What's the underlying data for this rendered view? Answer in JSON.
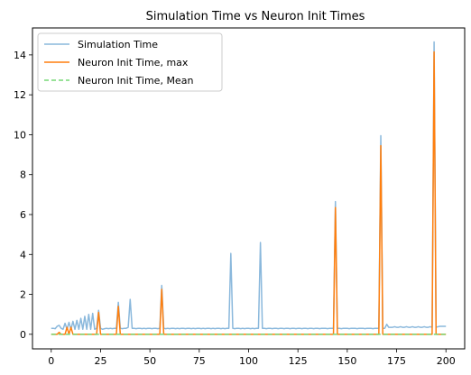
{
  "chart_data": {
    "type": "line",
    "title": "Simulation Time vs Neuron Init Times",
    "xlabel": "",
    "ylabel": "",
    "xlim": [
      -9.5,
      209.5
    ],
    "ylim": [
      -0.73,
      15.35
    ],
    "xticks": [
      0,
      25,
      50,
      75,
      100,
      125,
      150,
      175,
      200
    ],
    "yticks": [
      0,
      2,
      4,
      6,
      8,
      10,
      12,
      14
    ],
    "legend_position": "top-left",
    "grid": false,
    "series": [
      {
        "name": "Simulation Time",
        "color": "#8ab8dc",
        "style": "solid",
        "points": [
          [
            0,
            0.3
          ],
          [
            1,
            0.3
          ],
          [
            2,
            0.28
          ],
          [
            3,
            0.4
          ],
          [
            4,
            0.45
          ],
          [
            5,
            0.3
          ],
          [
            6,
            0.25
          ],
          [
            7,
            0.55
          ],
          [
            8,
            0.25
          ],
          [
            9,
            0.6
          ],
          [
            10,
            0.25
          ],
          [
            11,
            0.65
          ],
          [
            12,
            0.25
          ],
          [
            13,
            0.7
          ],
          [
            14,
            0.25
          ],
          [
            15,
            0.8
          ],
          [
            16,
            0.25
          ],
          [
            17,
            0.9
          ],
          [
            18,
            0.25
          ],
          [
            19,
            1.0
          ],
          [
            20,
            0.25
          ],
          [
            21,
            1.05
          ],
          [
            22,
            0.25
          ],
          [
            23,
            0.3
          ],
          [
            24,
            1.2
          ],
          [
            25,
            0.3
          ],
          [
            26,
            0.25
          ],
          [
            27,
            0.28
          ],
          [
            28,
            0.3
          ],
          [
            29,
            0.28
          ],
          [
            30,
            0.3
          ],
          [
            31,
            0.28
          ],
          [
            32,
            0.3
          ],
          [
            33,
            0.3
          ],
          [
            34,
            1.6
          ],
          [
            35,
            0.3
          ],
          [
            36,
            0.28
          ],
          [
            37,
            0.3
          ],
          [
            38,
            0.3
          ],
          [
            39,
            0.35
          ],
          [
            40,
            1.75
          ],
          [
            41,
            0.3
          ],
          [
            42,
            0.3
          ],
          [
            43,
            0.28
          ],
          [
            44,
            0.3
          ],
          [
            45,
            0.3
          ],
          [
            46,
            0.28
          ],
          [
            47,
            0.3
          ],
          [
            48,
            0.28
          ],
          [
            49,
            0.3
          ],
          [
            50,
            0.3
          ],
          [
            51,
            0.28
          ],
          [
            52,
            0.3
          ],
          [
            53,
            0.3
          ],
          [
            54,
            0.28
          ],
          [
            55,
            0.3
          ],
          [
            56,
            2.45
          ],
          [
            57,
            0.3
          ],
          [
            58,
            0.28
          ],
          [
            59,
            0.3
          ],
          [
            60,
            0.28
          ],
          [
            61,
            0.3
          ],
          [
            62,
            0.3
          ],
          [
            63,
            0.28
          ],
          [
            64,
            0.3
          ],
          [
            65,
            0.28
          ],
          [
            66,
            0.3
          ],
          [
            67,
            0.3
          ],
          [
            68,
            0.28
          ],
          [
            69,
            0.3
          ],
          [
            70,
            0.3
          ],
          [
            71,
            0.28
          ],
          [
            72,
            0.3
          ],
          [
            73,
            0.28
          ],
          [
            74,
            0.3
          ],
          [
            75,
            0.3
          ],
          [
            76,
            0.28
          ],
          [
            77,
            0.3
          ],
          [
            78,
            0.28
          ],
          [
            79,
            0.3
          ],
          [
            80,
            0.3
          ],
          [
            81,
            0.28
          ],
          [
            82,
            0.3
          ],
          [
            83,
            0.28
          ],
          [
            84,
            0.3
          ],
          [
            85,
            0.3
          ],
          [
            86,
            0.28
          ],
          [
            87,
            0.3
          ],
          [
            88,
            0.28
          ],
          [
            89,
            0.3
          ],
          [
            90,
            0.3
          ],
          [
            91,
            4.05
          ],
          [
            92,
            0.3
          ],
          [
            93,
            0.28
          ],
          [
            94,
            0.3
          ],
          [
            95,
            0.3
          ],
          [
            96,
            0.28
          ],
          [
            97,
            0.3
          ],
          [
            98,
            0.28
          ],
          [
            99,
            0.3
          ],
          [
            100,
            0.3
          ],
          [
            101,
            0.28
          ],
          [
            102,
            0.3
          ],
          [
            103,
            0.28
          ],
          [
            104,
            0.3
          ],
          [
            105,
            0.3
          ],
          [
            106,
            4.6
          ],
          [
            107,
            0.3
          ],
          [
            108,
            0.3
          ],
          [
            109,
            0.28
          ],
          [
            110,
            0.3
          ],
          [
            111,
            0.3
          ],
          [
            112,
            0.28
          ],
          [
            113,
            0.3
          ],
          [
            114,
            0.3
          ],
          [
            115,
            0.28
          ],
          [
            116,
            0.3
          ],
          [
            117,
            0.3
          ],
          [
            118,
            0.28
          ],
          [
            119,
            0.3
          ],
          [
            120,
            0.3
          ],
          [
            121,
            0.28
          ],
          [
            122,
            0.3
          ],
          [
            123,
            0.3
          ],
          [
            124,
            0.28
          ],
          [
            125,
            0.3
          ],
          [
            126,
            0.3
          ],
          [
            127,
            0.28
          ],
          [
            128,
            0.3
          ],
          [
            129,
            0.3
          ],
          [
            130,
            0.28
          ],
          [
            131,
            0.3
          ],
          [
            132,
            0.3
          ],
          [
            133,
            0.28
          ],
          [
            134,
            0.3
          ],
          [
            135,
            0.3
          ],
          [
            136,
            0.28
          ],
          [
            137,
            0.3
          ],
          [
            138,
            0.3
          ],
          [
            139,
            0.3
          ],
          [
            140,
            0.28
          ],
          [
            141,
            0.3
          ],
          [
            142,
            0.3
          ],
          [
            143,
            0.3
          ],
          [
            144,
            6.65
          ],
          [
            145,
            0.3
          ],
          [
            146,
            0.3
          ],
          [
            147,
            0.28
          ],
          [
            148,
            0.3
          ],
          [
            149,
            0.3
          ],
          [
            150,
            0.3
          ],
          [
            151,
            0.28
          ],
          [
            152,
            0.3
          ],
          [
            153,
            0.3
          ],
          [
            154,
            0.3
          ],
          [
            155,
            0.28
          ],
          [
            156,
            0.3
          ],
          [
            157,
            0.3
          ],
          [
            158,
            0.3
          ],
          [
            159,
            0.28
          ],
          [
            160,
            0.3
          ],
          [
            161,
            0.3
          ],
          [
            162,
            0.3
          ],
          [
            163,
            0.28
          ],
          [
            164,
            0.3
          ],
          [
            165,
            0.3
          ],
          [
            166,
            0.3
          ],
          [
            167,
            9.95
          ],
          [
            168,
            0.3
          ],
          [
            169,
            0.3
          ],
          [
            170,
            0.5
          ],
          [
            171,
            0.35
          ],
          [
            172,
            0.35
          ],
          [
            173,
            0.35
          ],
          [
            174,
            0.38
          ],
          [
            175,
            0.35
          ],
          [
            176,
            0.35
          ],
          [
            177,
            0.38
          ],
          [
            178,
            0.35
          ],
          [
            179,
            0.35
          ],
          [
            180,
            0.38
          ],
          [
            181,
            0.35
          ],
          [
            182,
            0.35
          ],
          [
            183,
            0.38
          ],
          [
            184,
            0.35
          ],
          [
            185,
            0.35
          ],
          [
            186,
            0.38
          ],
          [
            187,
            0.35
          ],
          [
            188,
            0.35
          ],
          [
            189,
            0.38
          ],
          [
            190,
            0.35
          ],
          [
            191,
            0.35
          ],
          [
            192,
            0.38
          ],
          [
            193,
            0.35
          ],
          [
            194,
            14.65
          ],
          [
            195,
            0.35
          ],
          [
            196,
            0.38
          ],
          [
            197,
            0.4
          ],
          [
            198,
            0.4
          ],
          [
            199,
            0.4
          ],
          [
            200,
            0.4
          ]
        ]
      },
      {
        "name": "Neuron Init Time, max",
        "color": "#ff7f0e",
        "style": "solid",
        "points": [
          [
            0,
            0.0
          ],
          [
            1,
            0.0
          ],
          [
            2,
            0.0
          ],
          [
            3,
            0.0
          ],
          [
            4,
            0.1
          ],
          [
            5,
            0.0
          ],
          [
            6,
            0.0
          ],
          [
            7,
            0.0
          ],
          [
            8,
            0.35
          ],
          [
            9,
            0.0
          ],
          [
            10,
            0.35
          ],
          [
            11,
            0.0
          ],
          [
            12,
            0.0
          ],
          [
            13,
            0.0
          ],
          [
            14,
            0.0
          ],
          [
            15,
            0.0
          ],
          [
            16,
            0.0
          ],
          [
            17,
            0.0
          ],
          [
            18,
            0.0
          ],
          [
            19,
            0.0
          ],
          [
            20,
            0.0
          ],
          [
            21,
            0.0
          ],
          [
            22,
            0.0
          ],
          [
            23,
            0.0
          ],
          [
            24,
            1.1
          ],
          [
            25,
            0.0
          ],
          [
            26,
            0.0
          ],
          [
            27,
            0.0
          ],
          [
            28,
            0.0
          ],
          [
            29,
            0.0
          ],
          [
            30,
            0.0
          ],
          [
            31,
            0.0
          ],
          [
            32,
            0.0
          ],
          [
            33,
            0.0
          ],
          [
            34,
            1.4
          ],
          [
            35,
            0.0
          ],
          [
            36,
            0.0
          ],
          [
            37,
            0.0
          ],
          [
            38,
            0.0
          ],
          [
            39,
            0.0
          ],
          [
            40,
            0.0
          ],
          [
            41,
            0.0
          ],
          [
            42,
            0.0
          ],
          [
            43,
            0.0
          ],
          [
            44,
            0.0
          ],
          [
            45,
            0.0
          ],
          [
            46,
            0.0
          ],
          [
            47,
            0.0
          ],
          [
            48,
            0.0
          ],
          [
            49,
            0.0
          ],
          [
            50,
            0.0
          ],
          [
            51,
            0.0
          ],
          [
            52,
            0.0
          ],
          [
            53,
            0.0
          ],
          [
            54,
            0.0
          ],
          [
            55,
            0.0
          ],
          [
            56,
            2.25
          ],
          [
            57,
            0.0
          ],
          [
            58,
            0.0
          ],
          [
            59,
            0.0
          ],
          [
            60,
            0.0
          ],
          [
            65,
            0.0
          ],
          [
            70,
            0.0
          ],
          [
            75,
            0.0
          ],
          [
            80,
            0.0
          ],
          [
            85,
            0.0
          ],
          [
            90,
            0.0
          ],
          [
            95,
            0.0
          ],
          [
            100,
            0.0
          ],
          [
            105,
            0.0
          ],
          [
            110,
            0.0
          ],
          [
            115,
            0.0
          ],
          [
            120,
            0.0
          ],
          [
            125,
            0.0
          ],
          [
            130,
            0.0
          ],
          [
            135,
            0.0
          ],
          [
            140,
            0.0
          ],
          [
            143,
            0.0
          ],
          [
            144,
            6.35
          ],
          [
            145,
            0.0
          ],
          [
            150,
            0.0
          ],
          [
            155,
            0.0
          ],
          [
            160,
            0.0
          ],
          [
            166,
            0.0
          ],
          [
            167,
            9.45
          ],
          [
            168,
            0.0
          ],
          [
            170,
            0.0
          ],
          [
            175,
            0.0
          ],
          [
            180,
            0.0
          ],
          [
            185,
            0.0
          ],
          [
            190,
            0.0
          ],
          [
            193,
            0.0
          ],
          [
            194,
            14.15
          ],
          [
            195,
            0.0
          ],
          [
            200,
            0.0
          ]
        ]
      },
      {
        "name": "Neuron Init Time, Mean",
        "color": "#77d877",
        "style": "dashed",
        "points": [
          [
            0,
            0.0
          ],
          [
            50,
            0.0
          ],
          [
            100,
            0.0
          ],
          [
            150,
            0.0
          ],
          [
            200,
            0.0
          ]
        ]
      }
    ]
  }
}
